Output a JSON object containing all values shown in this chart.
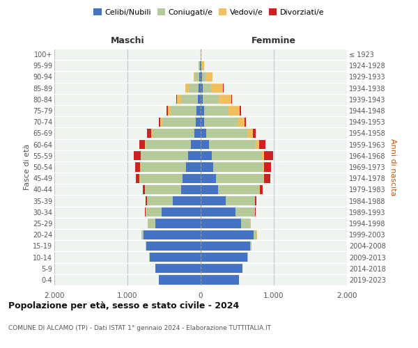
{
  "age_groups": [
    "0-4",
    "5-9",
    "10-14",
    "15-19",
    "20-24",
    "25-29",
    "30-34",
    "35-39",
    "40-44",
    "45-49",
    "50-54",
    "55-59",
    "60-64",
    "65-69",
    "70-74",
    "75-79",
    "80-84",
    "85-89",
    "90-94",
    "95-99",
    "100+"
  ],
  "birth_years": [
    "2019-2023",
    "2014-2018",
    "2009-2013",
    "2004-2008",
    "1999-2003",
    "1994-1998",
    "1989-1993",
    "1984-1988",
    "1979-1983",
    "1974-1978",
    "1969-1973",
    "1964-1968",
    "1959-1963",
    "1954-1958",
    "1949-1953",
    "1944-1948",
    "1939-1943",
    "1934-1938",
    "1929-1933",
    "1924-1928",
    "≤ 1923"
  ],
  "maschi_celibi": [
    570,
    620,
    700,
    740,
    780,
    620,
    530,
    380,
    270,
    250,
    200,
    175,
    130,
    90,
    65,
    55,
    35,
    30,
    18,
    10,
    2
  ],
  "maschi_coniugati": [
    0,
    0,
    2,
    8,
    30,
    100,
    220,
    350,
    490,
    580,
    620,
    640,
    620,
    570,
    460,
    350,
    230,
    130,
    60,
    15,
    2
  ],
  "maschi_vedovi": [
    0,
    0,
    0,
    0,
    2,
    2,
    5,
    5,
    5,
    5,
    5,
    5,
    10,
    20,
    30,
    45,
    55,
    45,
    20,
    5,
    0
  ],
  "maschi_divorziati": [
    0,
    0,
    0,
    0,
    2,
    5,
    8,
    15,
    30,
    55,
    75,
    95,
    80,
    50,
    20,
    15,
    10,
    5,
    0,
    0,
    0
  ],
  "femmine_celibi": [
    520,
    570,
    640,
    680,
    720,
    550,
    480,
    340,
    240,
    210,
    175,
    155,
    110,
    75,
    50,
    45,
    30,
    25,
    15,
    10,
    2
  ],
  "femmine_coniugati": [
    0,
    0,
    3,
    12,
    45,
    130,
    260,
    400,
    560,
    650,
    670,
    680,
    640,
    560,
    450,
    340,
    215,
    120,
    55,
    10,
    2
  ],
  "femmine_vedovi": [
    0,
    0,
    0,
    0,
    2,
    2,
    5,
    5,
    8,
    10,
    20,
    30,
    50,
    80,
    100,
    150,
    175,
    160,
    90,
    30,
    2
  ],
  "femmine_divorziati": [
    0,
    0,
    0,
    0,
    2,
    5,
    10,
    20,
    35,
    80,
    100,
    130,
    90,
    40,
    20,
    15,
    10,
    5,
    2,
    0,
    0
  ],
  "color_celibi": "#4472c4",
  "color_coniugati": "#b5c99a",
  "color_vedovi": "#f0c060",
  "color_divorziati": "#cc2222",
  "title_main": "Popolazione per età, sesso e stato civile - 2024",
  "subtitle": "COMUNE DI ALCAMO (TP) - Dati ISTAT 1° gennaio 2024 - Elaborazione TUTTITALIA.IT",
  "ylabel_left": "Fasce di età",
  "ylabel_right": "Anni di nascita",
  "xlabel_left": "Maschi",
  "xlabel_right": "Femmine",
  "xmax": 2000,
  "bg_color": "#f0f4f0",
  "grid_color": "#cccccc"
}
